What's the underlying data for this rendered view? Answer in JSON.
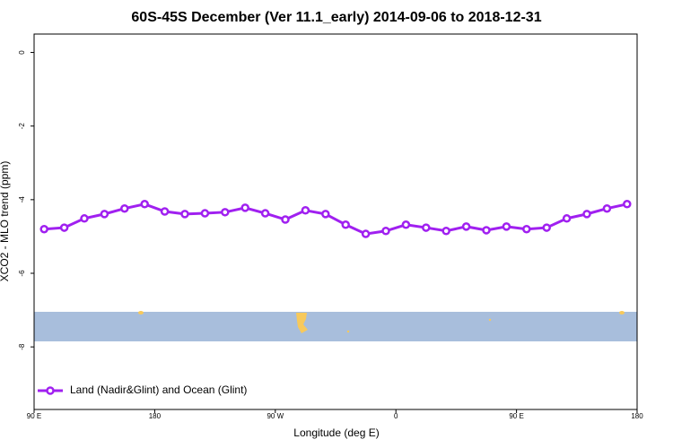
{
  "chart_data": {
    "type": "line",
    "title": "60S-45S December (Ver 11.1_early)   2014-09-06 to 2018-12-31",
    "x_label": "Longitude (deg E)",
    "y_label": "XCO2 - MLO trend (ppm)",
    "x": [
      97.5,
      112.5,
      127.5,
      142.5,
      157.5,
      172.5,
      187.5,
      202.5,
      217.5,
      232.5,
      247.5,
      262.5,
      277.5,
      292.5,
      307.5,
      322.5,
      337.5,
      352.5,
      367.5,
      382.5,
      397.5,
      412.5,
      427.5,
      442.5,
      457.5,
      472.5,
      487.5,
      502.5,
      517.5,
      532.5
    ],
    "series": [
      {
        "name": "Land (Nadir&Glint) and Ocean (Glint)",
        "color": "#a020f0",
        "values": [
          -4.8,
          -4.76,
          -4.51,
          -4.39,
          -4.24,
          -4.12,
          -4.32,
          -4.39,
          -4.37,
          -4.34,
          -4.22,
          -4.37,
          -4.54,
          -4.29,
          -4.39,
          -4.68,
          -4.93,
          -4.85,
          -4.68,
          -4.76,
          -4.85,
          -4.73,
          -4.83,
          -4.73,
          -4.8,
          -4.76,
          -4.51,
          -4.39,
          -4.24,
          -4.12
        ]
      }
    ],
    "xlim": [
      90,
      540
    ],
    "xticks": [
      {
        "value": 90,
        "label": "90 E"
      },
      {
        "value": 180,
        "label": "180"
      },
      {
        "value": 270,
        "label": "90 W"
      },
      {
        "value": 360,
        "label": "0"
      },
      {
        "value": 450,
        "label": "90 E"
      },
      {
        "value": 540,
        "label": "180"
      }
    ],
    "ylim": [
      -9.7,
      0.5
    ],
    "yticks": [
      0,
      -2,
      -4,
      -6,
      -8
    ],
    "legend": "bottom-left"
  }
}
